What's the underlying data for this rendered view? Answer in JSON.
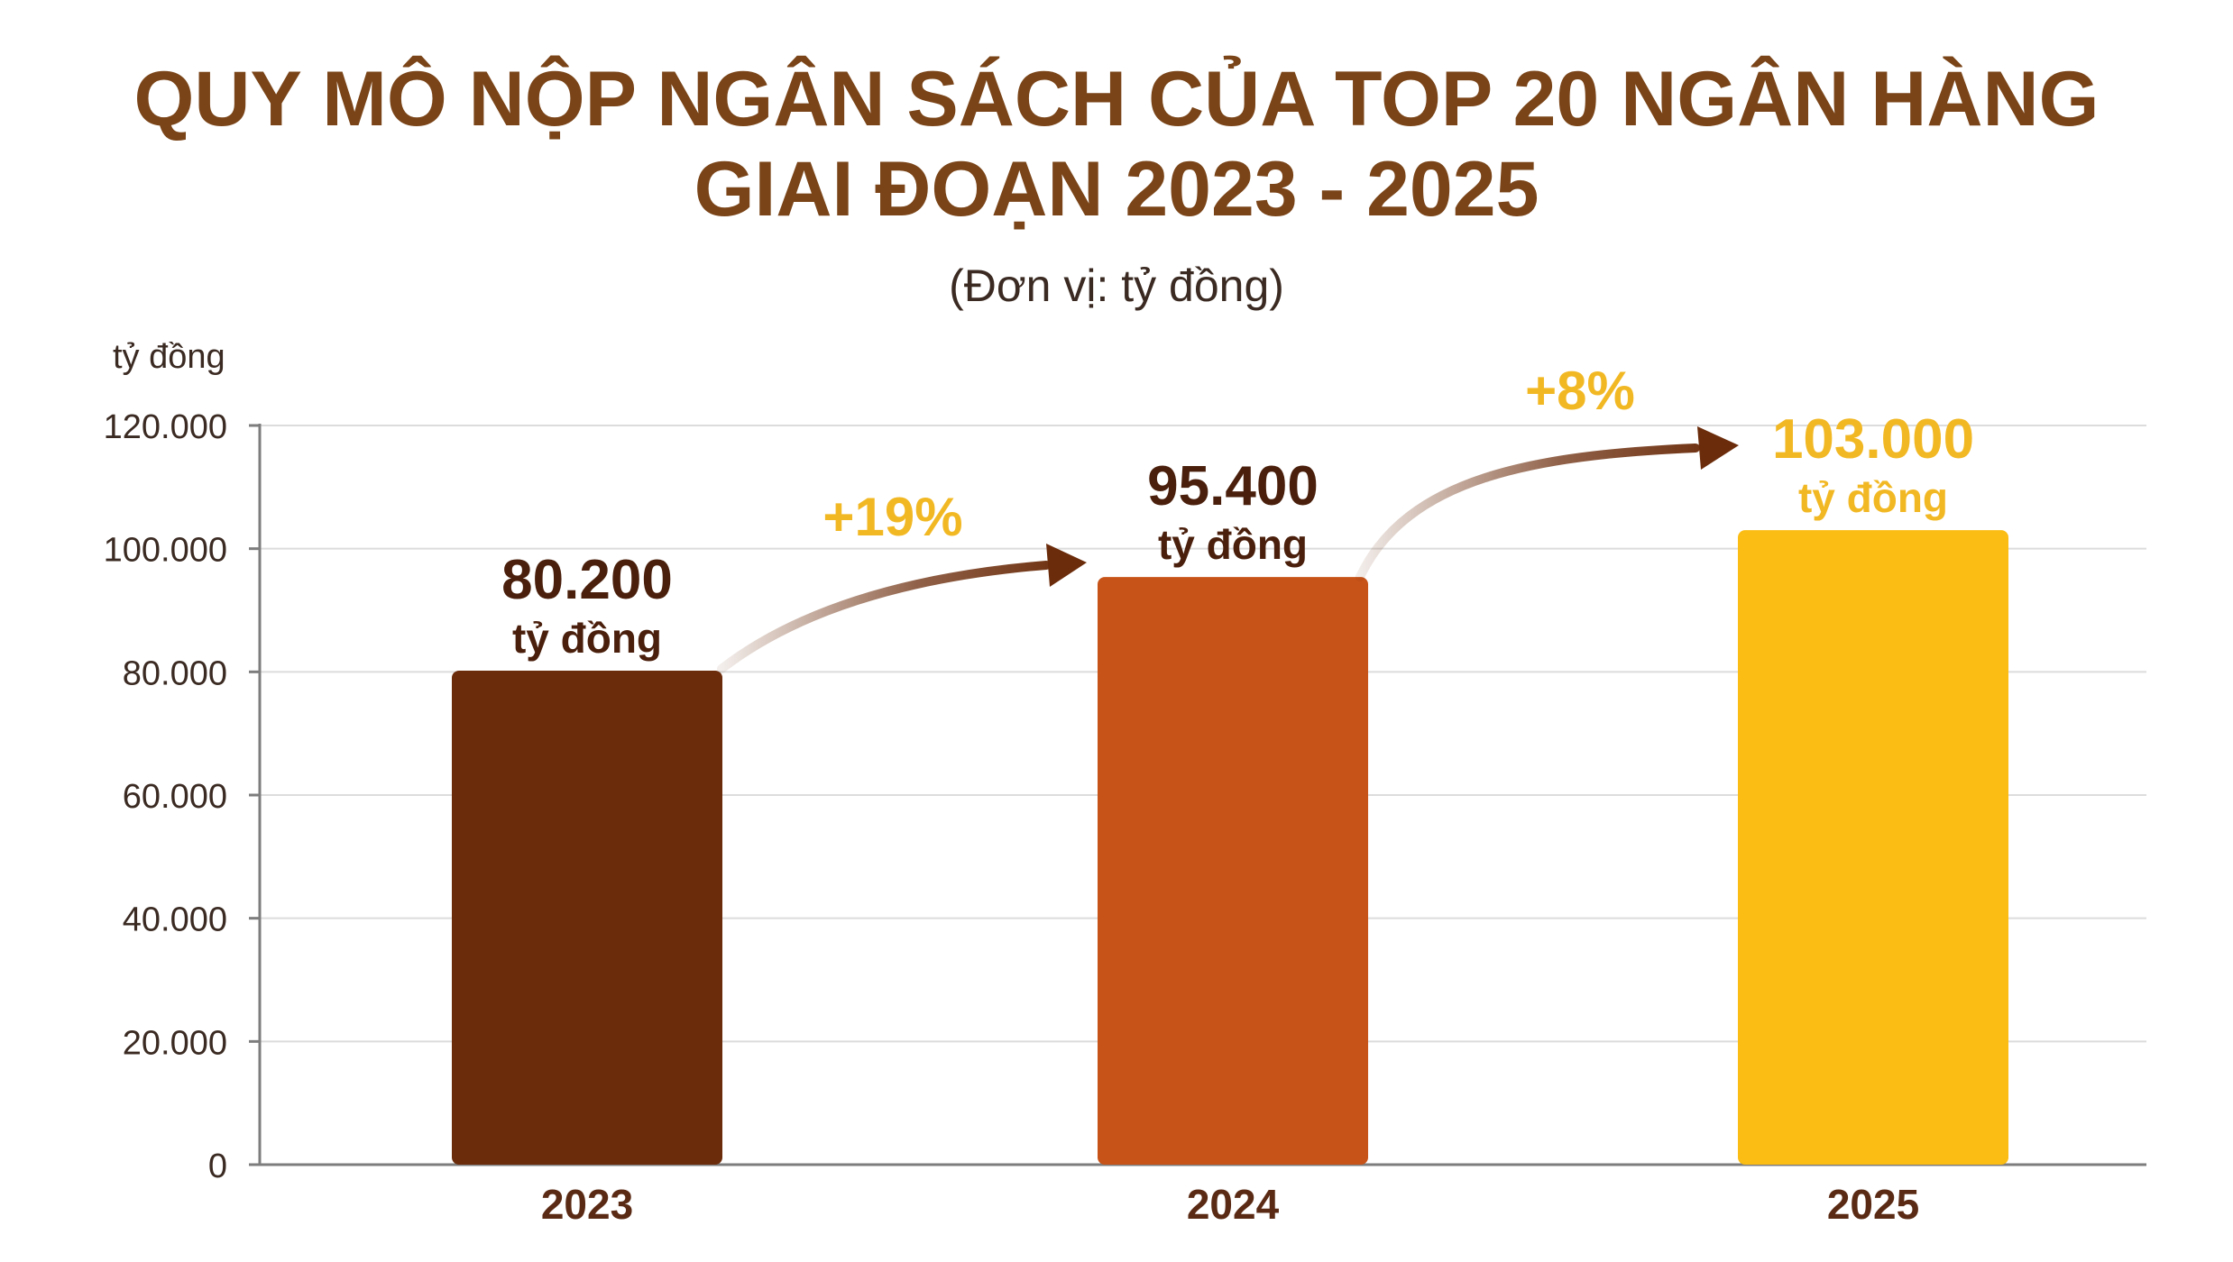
{
  "chart_data": {
    "type": "bar",
    "title_line1": "QUY MÔ NỘP NGÂN SÁCH CỦA TOP 20 NGÂN HÀNG",
    "title_line2": "GIAI ĐOẠN 2023 - 2025",
    "subtitle": "(Đơn vị: tỷ đồng)",
    "ylabel": "tỷ đồng",
    "xlabel": "",
    "categories": [
      "2023",
      "2024",
      "2025"
    ],
    "values": [
      80200,
      95400,
      103000
    ],
    "value_labels": [
      "80.200",
      "95.400",
      "103.000"
    ],
    "value_unit": "tỷ đồng",
    "bar_colors": [
      "#6b2c0b",
      "#c75318",
      "#fbbc13"
    ],
    "value_label_colors": [
      "#4a1f0c",
      "#4a1f0c",
      "#f2b824"
    ],
    "ylim": [
      0,
      120000
    ],
    "yticks": [
      0,
      20000,
      40000,
      60000,
      80000,
      100000,
      120000
    ],
    "ytick_labels": [
      "0",
      "20.000",
      "40.000",
      "60.000",
      "80.000",
      "100.000",
      "120.000"
    ],
    "grid": true,
    "growth": [
      {
        "from": "2023",
        "to": "2024",
        "label": "+19%"
      },
      {
        "from": "2024",
        "to": "2025",
        "label": "+8%"
      }
    ],
    "growth_color": "#f2b824",
    "arrow_color": "#6b2c0b"
  }
}
